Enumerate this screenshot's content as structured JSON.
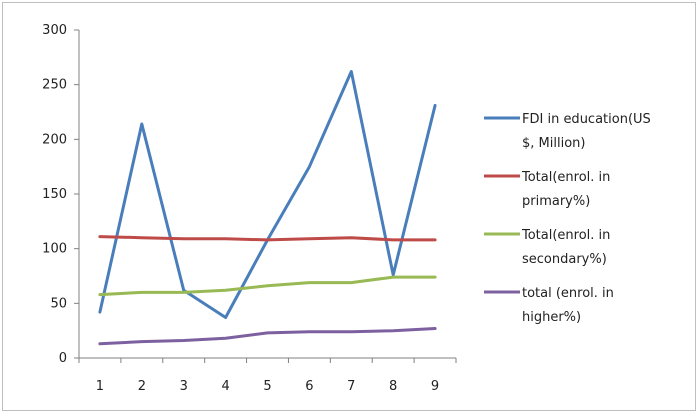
{
  "chart_data": {
    "type": "line",
    "title": "",
    "xlabel": "",
    "ylabel": "",
    "x": [
      1,
      2,
      3,
      4,
      5,
      6,
      7,
      8,
      9
    ],
    "ylim": [
      0,
      300
    ],
    "y_ticks": [
      0,
      50,
      100,
      150,
      200,
      250,
      300
    ],
    "grid": false,
    "legend_position": "right",
    "series": [
      {
        "name_lines": [
          "FDI in education(US",
          "$, Million)"
        ],
        "color": "#4a7ebb",
        "values": [
          42,
          214,
          62,
          37,
          108,
          175,
          262,
          76,
          231
        ]
      },
      {
        "name_lines": [
          "Total(enrol. in",
          "primary%)"
        ],
        "color": "#be4b48",
        "values": [
          111,
          110,
          109,
          109,
          108,
          109,
          110,
          108,
          108
        ]
      },
      {
        "name_lines": [
          "Total(enrol. in",
          "secondary%)"
        ],
        "color": "#98b954",
        "values": [
          58,
          60,
          60,
          62,
          66,
          69,
          69,
          74,
          74
        ]
      },
      {
        "name_lines": [
          "total (enrol. in",
          "higher%)"
        ],
        "color": "#7d60a0",
        "values": [
          13,
          15,
          16,
          18,
          23,
          24,
          24,
          25,
          27
        ]
      }
    ]
  }
}
